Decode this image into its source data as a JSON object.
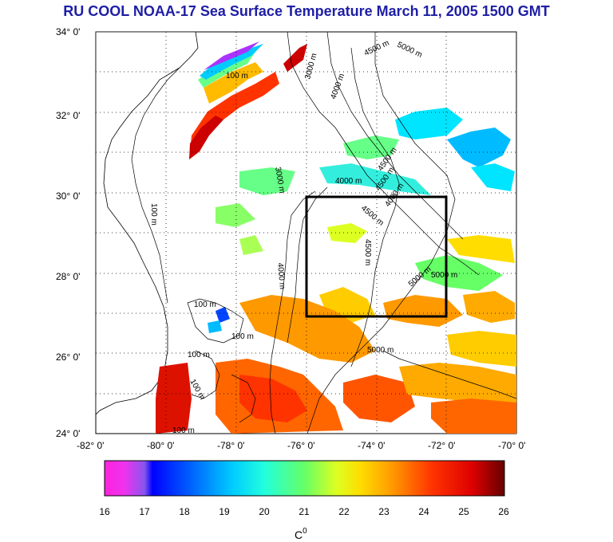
{
  "title": "RU COOL  NOAA-17 Sea Surface Temperature March 11, 2005 1500 GMT",
  "map": {
    "lat_labels": [
      "34° 0'",
      "32° 0'",
      "30° 0'",
      "28° 0'",
      "26° 0'",
      "24° 0'"
    ],
    "lon_labels": [
      "-82° 0'",
      "-80° 0'",
      "-78° 0'",
      "-76° 0'",
      "-74° 0'",
      "-72° 0'",
      "-70° 0'"
    ],
    "lat_range": [
      24,
      34
    ],
    "lon_range": [
      -82,
      -70
    ],
    "study_box": {
      "lon": [
        -76,
        -72
      ],
      "lat": [
        27,
        30
      ]
    },
    "contour_labels": [
      "100 m",
      "100 m",
      "100 m",
      "100 m",
      "100 m",
      "100 m",
      "3000 m",
      "3000 m",
      "4000 m",
      "4500 m",
      "5000 m",
      "4000 m",
      "4500 m",
      "4500 m",
      "4000 m",
      "4500 m",
      "4500 m",
      "5000 m",
      "4000 m",
      "5000 m",
      "5000 m",
      "100 m"
    ]
  },
  "colorbar": {
    "tick_labels": [
      "16",
      "17",
      "18",
      "19",
      "20",
      "21",
      "22",
      "23",
      "24",
      "25",
      "26"
    ],
    "range": [
      16,
      26
    ],
    "unit": "C",
    "unit_superscript": "0",
    "colors": [
      "#ff22dd",
      "#aa55ee",
      "#0000ff",
      "#00aaff",
      "#00ffff",
      "#55ff88",
      "#ffff00",
      "#ff8800",
      "#ff0000",
      "#880000"
    ]
  }
}
